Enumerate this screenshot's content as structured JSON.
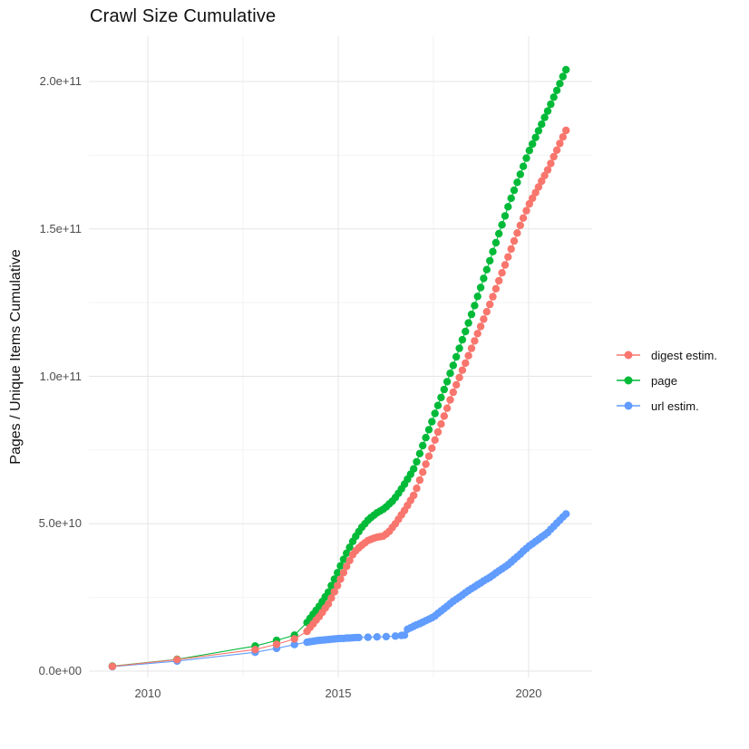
{
  "title": "Crawl Size Cumulative",
  "y_axis": {
    "label": "Pages / Unique Items Cumulative",
    "ticks": [
      "0.0e+00",
      "5.0e+10",
      "1.0e+11",
      "1.5e+11",
      "2.0e+11"
    ]
  },
  "x_axis": {
    "ticks": [
      "2010",
      "2015",
      "2020"
    ]
  },
  "legend": {
    "items": [
      {
        "label": "digest estim.",
        "color": "#F8766D"
      },
      {
        "label": "page",
        "color": "#00BA38"
      },
      {
        "label": "url estim.",
        "color": "#619CFF"
      }
    ]
  },
  "chart_data": {
    "type": "scatter",
    "title": "Crawl Size Cumulative",
    "xlabel": "",
    "ylabel": "Pages / Unique Items Cumulative",
    "x_unit": "year",
    "value_unit": "1e9 items",
    "xlim": [
      2008.5,
      2021.7
    ],
    "ylim": [
      0,
      215000000000.0
    ],
    "grid": true,
    "legend_position": "right",
    "x_major_gridlines": [
      2010,
      2015,
      2020
    ],
    "x_minor_gridlines": [
      2012.5,
      2017.5
    ],
    "y_major_gridlines": [
      0,
      50000000000.0,
      100000000000.0,
      150000000000.0,
      200000000000.0
    ],
    "y_minor_gridlines": [
      25000000000.0,
      75000000000.0,
      125000000000.0,
      175000000000.0
    ],
    "series": [
      {
        "name": "digest estim.",
        "color": "#F8766D",
        "points": [
          [
            2009.07,
            1.6
          ],
          [
            2010.77,
            3.9
          ],
          [
            2012.82,
            7.3
          ],
          [
            2013.38,
            9.1
          ],
          [
            2013.85,
            10.9
          ],
          [
            2014.18,
            13.5
          ],
          [
            2014.26,
            14.8
          ],
          [
            2014.34,
            16
          ],
          [
            2014.42,
            17.3
          ],
          [
            2014.5,
            18.5
          ],
          [
            2014.58,
            19.9
          ],
          [
            2014.66,
            21.4
          ],
          [
            2014.74,
            22.8
          ],
          [
            2014.82,
            24.8
          ],
          [
            2014.9,
            26.9
          ],
          [
            2014.98,
            29
          ],
          [
            2015.06,
            31.2
          ],
          [
            2015.14,
            33.4
          ],
          [
            2015.22,
            35.5
          ],
          [
            2015.3,
            37.5
          ],
          [
            2015.38,
            39.5
          ],
          [
            2015.46,
            40.8
          ],
          [
            2015.54,
            41.8
          ],
          [
            2015.62,
            42.7
          ],
          [
            2015.7,
            43.5
          ],
          [
            2015.78,
            44.3
          ],
          [
            2015.86,
            44.7
          ],
          [
            2015.94,
            45.1
          ],
          [
            2016.02,
            45.4
          ],
          [
            2016.1,
            45.6
          ],
          [
            2016.18,
            45.8
          ],
          [
            2016.26,
            46.5
          ],
          [
            2016.34,
            47.4
          ],
          [
            2016.42,
            48.7
          ],
          [
            2016.5,
            50
          ],
          [
            2016.58,
            51.5
          ],
          [
            2016.66,
            53
          ],
          [
            2016.74,
            54.5
          ],
          [
            2016.82,
            56.2
          ],
          [
            2016.9,
            57.9
          ],
          [
            2016.98,
            59.6
          ],
          [
            2017.06,
            62
          ],
          [
            2017.14,
            64.8
          ],
          [
            2017.22,
            67.5
          ],
          [
            2017.3,
            70.2
          ],
          [
            2017.38,
            72.9
          ],
          [
            2017.46,
            75.6
          ],
          [
            2017.54,
            78.4
          ],
          [
            2017.62,
            81.1
          ],
          [
            2017.7,
            83.8
          ],
          [
            2017.78,
            86.5
          ],
          [
            2017.86,
            89.2
          ],
          [
            2017.94,
            92
          ],
          [
            2018.02,
            94.6
          ],
          [
            2018.1,
            97.1
          ],
          [
            2018.18,
            99.6
          ],
          [
            2018.26,
            102.1
          ],
          [
            2018.34,
            104.5
          ],
          [
            2018.42,
            107
          ],
          [
            2018.5,
            109.5
          ],
          [
            2018.58,
            112
          ],
          [
            2018.66,
            114.5
          ],
          [
            2018.74,
            116.9
          ],
          [
            2018.82,
            119.4
          ],
          [
            2018.9,
            121.9
          ],
          [
            2018.98,
            124.4
          ],
          [
            2019.06,
            127
          ],
          [
            2019.14,
            129.7
          ],
          [
            2019.22,
            132.4
          ],
          [
            2019.3,
            135.1
          ],
          [
            2019.38,
            137.8
          ],
          [
            2019.46,
            140.5
          ],
          [
            2019.54,
            143.2
          ],
          [
            2019.62,
            145.9
          ],
          [
            2019.7,
            148.6
          ],
          [
            2019.78,
            151.2
          ],
          [
            2019.86,
            153.7
          ],
          [
            2019.94,
            156.2
          ],
          [
            2020.02,
            158.5
          ],
          [
            2020.1,
            160.4
          ],
          [
            2020.18,
            162.3
          ],
          [
            2020.26,
            164.2
          ],
          [
            2020.34,
            166.2
          ],
          [
            2020.42,
            168.1
          ],
          [
            2020.5,
            170
          ],
          [
            2020.58,
            172.2
          ],
          [
            2020.66,
            174.5
          ],
          [
            2020.74,
            176.7
          ],
          [
            2020.82,
            179
          ],
          [
            2020.9,
            181.2
          ],
          [
            2020.98,
            183.4
          ]
        ]
      },
      {
        "name": "page",
        "color": "#00BA38",
        "points": [
          [
            2009.07,
            1.7
          ],
          [
            2010.77,
            4.0
          ],
          [
            2012.82,
            8.5
          ],
          [
            2013.38,
            10.4
          ],
          [
            2013.85,
            12.2
          ],
          [
            2014.18,
            16.5
          ],
          [
            2014.26,
            17.9
          ],
          [
            2014.34,
            19.3
          ],
          [
            2014.42,
            20.6
          ],
          [
            2014.5,
            22
          ],
          [
            2014.58,
            23.6
          ],
          [
            2014.66,
            25.2
          ],
          [
            2014.74,
            26.8
          ],
          [
            2014.82,
            29
          ],
          [
            2014.9,
            31.2
          ],
          [
            2014.98,
            33.4
          ],
          [
            2015.06,
            35.7
          ],
          [
            2015.14,
            37.9
          ],
          [
            2015.22,
            40
          ],
          [
            2015.3,
            42
          ],
          [
            2015.38,
            44
          ],
          [
            2015.46,
            45.7
          ],
          [
            2015.54,
            47.3
          ],
          [
            2015.62,
            48.8
          ],
          [
            2015.7,
            50
          ],
          [
            2015.78,
            51.2
          ],
          [
            2015.86,
            52.1
          ],
          [
            2015.94,
            52.9
          ],
          [
            2016.02,
            53.7
          ],
          [
            2016.1,
            54.3
          ],
          [
            2016.18,
            54.9
          ],
          [
            2016.26,
            55.7
          ],
          [
            2016.34,
            56.7
          ],
          [
            2016.42,
            57.6
          ],
          [
            2016.5,
            58.9
          ],
          [
            2016.58,
            60.3
          ],
          [
            2016.66,
            61.8
          ],
          [
            2016.74,
            63.4
          ],
          [
            2016.82,
            65.1
          ],
          [
            2016.9,
            66.8
          ],
          [
            2016.98,
            68.6
          ],
          [
            2017.06,
            71
          ],
          [
            2017.14,
            73.8
          ],
          [
            2017.22,
            76.5
          ],
          [
            2017.3,
            79.2
          ],
          [
            2017.38,
            81.9
          ],
          [
            2017.46,
            84.6
          ],
          [
            2017.54,
            87.4
          ],
          [
            2017.62,
            90.1
          ],
          [
            2017.7,
            92.8
          ],
          [
            2017.78,
            95.5
          ],
          [
            2017.86,
            98.2
          ],
          [
            2017.94,
            101
          ],
          [
            2018.02,
            103.7
          ],
          [
            2018.1,
            106.6
          ],
          [
            2018.18,
            109.5
          ],
          [
            2018.26,
            112.4
          ],
          [
            2018.34,
            115.2
          ],
          [
            2018.42,
            118.1
          ],
          [
            2018.5,
            121
          ],
          [
            2018.58,
            124
          ],
          [
            2018.66,
            127.1
          ],
          [
            2018.74,
            130.1
          ],
          [
            2018.82,
            133.2
          ],
          [
            2018.9,
            136.2
          ],
          [
            2018.98,
            139.2
          ],
          [
            2019.06,
            142.3
          ],
          [
            2019.14,
            145.3
          ],
          [
            2019.22,
            148.4
          ],
          [
            2019.3,
            151.4
          ],
          [
            2019.38,
            154.4
          ],
          [
            2019.46,
            157.5
          ],
          [
            2019.54,
            160.4
          ],
          [
            2019.62,
            163.1
          ],
          [
            2019.7,
            165.8
          ],
          [
            2019.78,
            168.5
          ],
          [
            2019.86,
            171.2
          ],
          [
            2019.94,
            174
          ],
          [
            2020.02,
            176.6
          ],
          [
            2020.1,
            178.8
          ],
          [
            2020.18,
            181
          ],
          [
            2020.26,
            183.3
          ],
          [
            2020.34,
            185.5
          ],
          [
            2020.42,
            187.8
          ],
          [
            2020.5,
            190
          ],
          [
            2020.58,
            192.3
          ],
          [
            2020.66,
            194.7
          ],
          [
            2020.74,
            197
          ],
          [
            2020.82,
            199.3
          ],
          [
            2020.9,
            201.7
          ],
          [
            2020.98,
            204
          ]
        ]
      },
      {
        "name": "url estim.",
        "color": "#619CFF",
        "points": [
          [
            2009.07,
            1.5
          ],
          [
            2010.77,
            3.4
          ],
          [
            2012.82,
            6.4
          ],
          [
            2013.38,
            7.7
          ],
          [
            2013.85,
            9.0
          ],
          [
            2014.18,
            9.8
          ],
          [
            2014.26,
            10
          ],
          [
            2014.34,
            10.1
          ],
          [
            2014.42,
            10.3
          ],
          [
            2014.5,
            10.4
          ],
          [
            2014.58,
            10.5
          ],
          [
            2014.66,
            10.6
          ],
          [
            2014.74,
            10.7
          ],
          [
            2014.82,
            10.8
          ],
          [
            2014.9,
            10.9
          ],
          [
            2014.98,
            11
          ],
          [
            2015.06,
            11.1
          ],
          [
            2015.14,
            11.1
          ],
          [
            2015.22,
            11.2
          ],
          [
            2015.3,
            11.2
          ],
          [
            2015.38,
            11.3
          ],
          [
            2015.46,
            11.4
          ],
          [
            2015.54,
            11.4
          ],
          [
            2015.78,
            11.5
          ],
          [
            2016.02,
            11.6
          ],
          [
            2016.26,
            11.7
          ],
          [
            2016.5,
            11.9
          ],
          [
            2016.66,
            12.1
          ],
          [
            2016.74,
            12.2
          ],
          [
            2016.82,
            14.2
          ],
          [
            2016.9,
            14.7
          ],
          [
            2016.98,
            15.2
          ],
          [
            2017.06,
            15.7
          ],
          [
            2017.14,
            16.1
          ],
          [
            2017.22,
            16.6
          ],
          [
            2017.3,
            17.1
          ],
          [
            2017.38,
            17.6
          ],
          [
            2017.46,
            18.1
          ],
          [
            2017.54,
            18.7
          ],
          [
            2017.62,
            19.6
          ],
          [
            2017.7,
            20.4
          ],
          [
            2017.78,
            21.2
          ],
          [
            2017.86,
            22
          ],
          [
            2017.94,
            22.9
          ],
          [
            2018.02,
            23.7
          ],
          [
            2018.1,
            24.4
          ],
          [
            2018.18,
            25.1
          ],
          [
            2018.26,
            25.8
          ],
          [
            2018.34,
            26.6
          ],
          [
            2018.42,
            27.3
          ],
          [
            2018.5,
            28
          ],
          [
            2018.58,
            28.6
          ],
          [
            2018.66,
            29.3
          ],
          [
            2018.74,
            29.9
          ],
          [
            2018.82,
            30.6
          ],
          [
            2018.9,
            31.2
          ],
          [
            2018.98,
            31.8
          ],
          [
            2019.06,
            32.5
          ],
          [
            2019.14,
            33.3
          ],
          [
            2019.22,
            34
          ],
          [
            2019.3,
            34.7
          ],
          [
            2019.38,
            35.4
          ],
          [
            2019.46,
            36.1
          ],
          [
            2019.54,
            37
          ],
          [
            2019.62,
            37.9
          ],
          [
            2019.7,
            38.8
          ],
          [
            2019.78,
            39.7
          ],
          [
            2019.86,
            40.7
          ],
          [
            2019.94,
            41.6
          ],
          [
            2020.02,
            42.5
          ],
          [
            2020.1,
            43.2
          ],
          [
            2020.18,
            44
          ],
          [
            2020.26,
            44.7
          ],
          [
            2020.34,
            45.5
          ],
          [
            2020.42,
            46.2
          ],
          [
            2020.5,
            47
          ],
          [
            2020.58,
            48.1
          ],
          [
            2020.66,
            49.1
          ],
          [
            2020.74,
            50.2
          ],
          [
            2020.82,
            51.2
          ],
          [
            2020.9,
            52.3
          ],
          [
            2020.98,
            53.3
          ]
        ]
      }
    ]
  }
}
